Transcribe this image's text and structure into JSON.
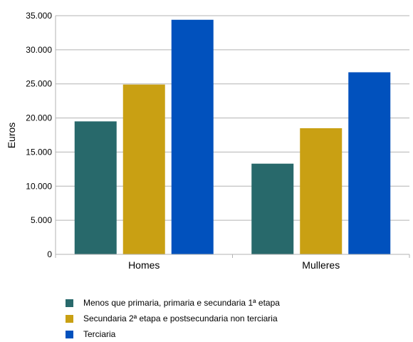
{
  "chart_data": {
    "type": "bar",
    "categories": [
      "Homes",
      "Mulleres"
    ],
    "series": [
      {
        "name": "Menos que primaria, primaria e secundaria 1ª etapa",
        "color": "#28696b",
        "values": [
          19500,
          13300
        ]
      },
      {
        "name": "Secundaria 2ª etapa e postsecundaria non terciaria",
        "color": "#c9a013",
        "values": [
          24900,
          18500
        ]
      },
      {
        "name": "Terciaria",
        "color": "#0151bd",
        "values": [
          34400,
          26700
        ]
      }
    ],
    "title": "",
    "xlabel": "",
    "ylabel": "Euros",
    "ylim": [
      0,
      35000
    ],
    "yticks": [
      0,
      5000,
      10000,
      15000,
      20000,
      25000,
      30000,
      35000
    ],
    "ytick_labels": [
      "0",
      "5.000",
      "10.000",
      "15.000",
      "20.000",
      "25.000",
      "30.000",
      "35.000"
    ],
    "grid": true,
    "legend_position": "bottom-left"
  }
}
